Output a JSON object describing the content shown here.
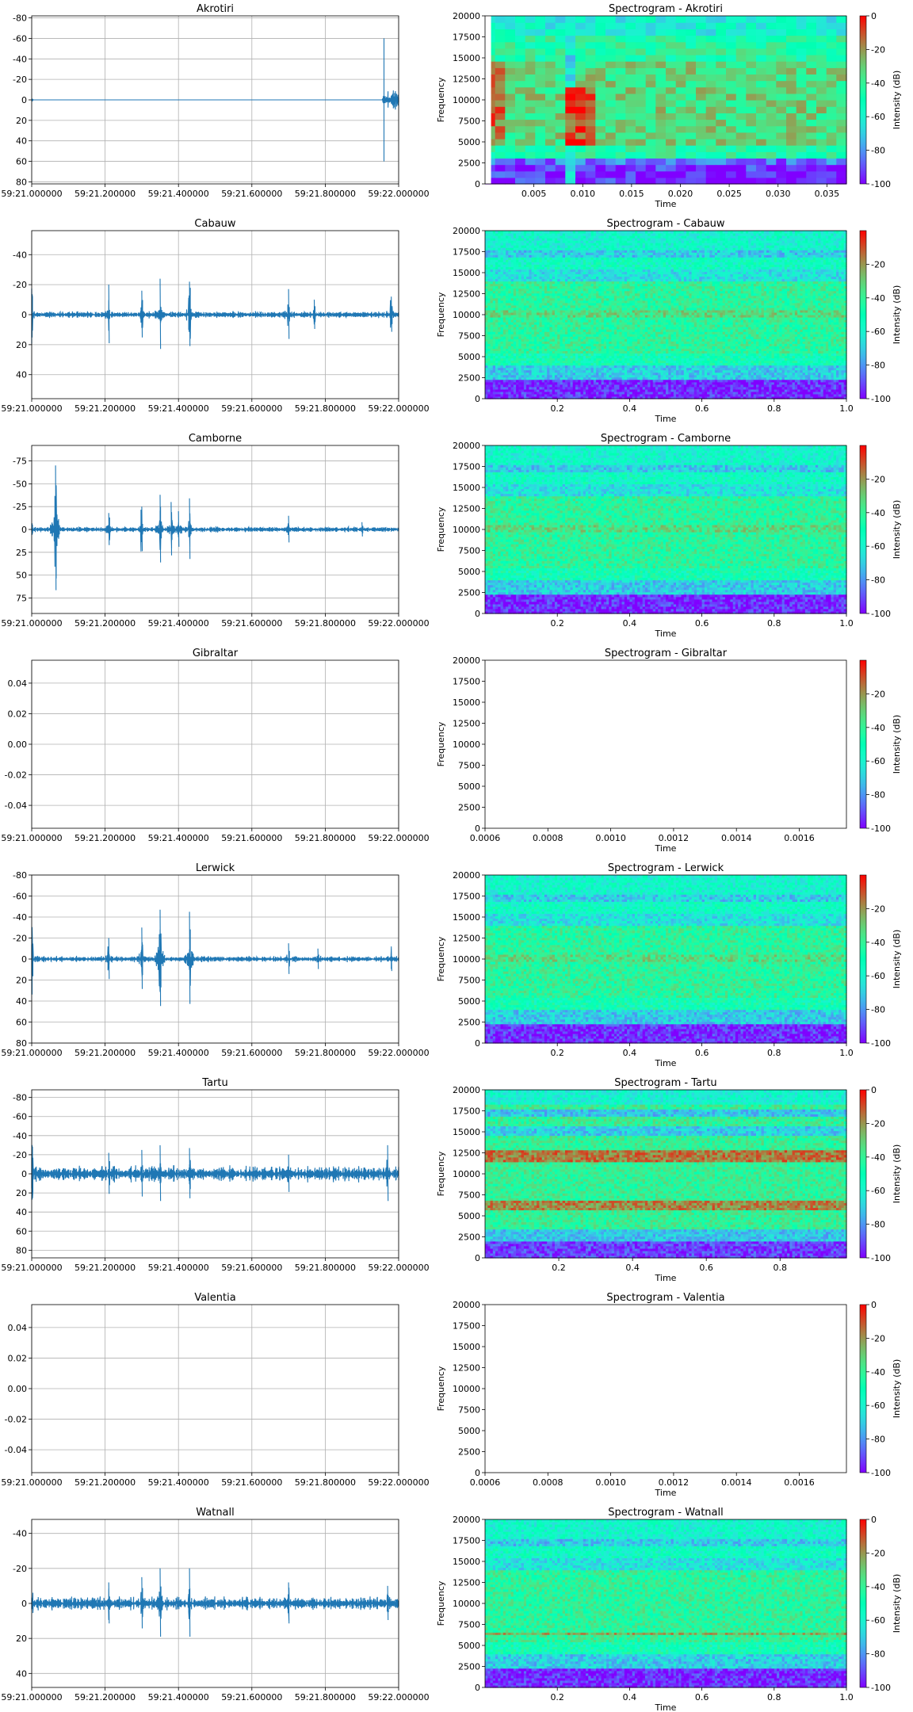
{
  "figure": {
    "waveform_color": "#1f77b4",
    "grid_color": "#b0b0b0",
    "colormap": "rainbow",
    "x_tick_labels": [
      "59:21.000000",
      "59:21.200000",
      "59:21.400000",
      "59:21.600000",
      "59:21.800000",
      "59:22.000000"
    ],
    "freq_ticks": [
      0,
      2500,
      5000,
      7500,
      10000,
      12500,
      15000,
      17500,
      20000
    ],
    "colorbar_label": "Intensity (dB)",
    "spec_xlabel": "Time",
    "spec_ylabel": "Frequency"
  },
  "chart_data": [
    {
      "type": "line",
      "panel": "waveform",
      "title": "Akrotiri",
      "grid": true,
      "y_inverted": true,
      "ylim": [
        -82,
        82
      ],
      "yticks": [
        -80,
        -60,
        -40,
        -20,
        0,
        20,
        40,
        60,
        80
      ],
      "xlim": [
        0,
        1
      ],
      "x_tick_labels_ref": "figure.x_tick_labels",
      "features": {
        "start_burst": 3,
        "baseline": 0,
        "spikes": [
          {
            "t": 0.96,
            "lo": -60,
            "hi": 60
          }
        ],
        "end_burst": 10,
        "end_start": 0.955,
        "noise": 0,
        "events": []
      }
    },
    {
      "type": "heatmap",
      "panel": "spectrogram",
      "title": "Spectrogram - Akrotiri",
      "xlabel": "Time",
      "ylabel": "Frequency",
      "ylim": [
        0,
        20000
      ],
      "xlim": [
        0,
        0.037
      ],
      "xticks": [
        0.005,
        0.01,
        0.015,
        0.02,
        0.025,
        0.03,
        0.035
      ],
      "cbar_range": [
        -100,
        0
      ],
      "cbar_ticks": [
        0,
        -20,
        -40,
        -60,
        -80,
        -100
      ],
      "cbar_label": "Intensity (dB)",
      "style": "blocky"
    },
    {
      "type": "line",
      "panel": "waveform",
      "title": "Cabauw",
      "grid": true,
      "y_inverted": true,
      "ylim": [
        -56,
        56
      ],
      "yticks": [
        -40,
        -20,
        0,
        20,
        40
      ],
      "xlim": [
        0,
        1
      ],
      "x_tick_labels_ref": "figure.x_tick_labels",
      "features": {
        "start_burst": 30,
        "noise": 2.5,
        "events": [
          [
            0.21,
            20
          ],
          [
            0.3,
            16
          ],
          [
            0.35,
            24
          ],
          [
            0.43,
            22
          ],
          [
            0.7,
            17
          ],
          [
            0.77,
            10
          ],
          [
            0.98,
            12
          ]
        ]
      }
    },
    {
      "type": "heatmap",
      "panel": "spectrogram",
      "title": "Spectrogram - Cabauw",
      "xlabel": "Time",
      "ylabel": "Frequency",
      "ylim": [
        0,
        20000
      ],
      "xlim": [
        0,
        1.0
      ],
      "xticks": [
        0.2,
        0.4,
        0.6,
        0.8,
        1.0
      ],
      "cbar_range": [
        -100,
        0
      ],
      "cbar_ticks": [
        -20,
        -40,
        -60,
        -80,
        -100
      ],
      "cbar_label": "Intensity (dB)",
      "style": "fine"
    },
    {
      "type": "line",
      "panel": "waveform",
      "title": "Camborne",
      "grid": true,
      "y_inverted": true,
      "ylim": [
        -92,
        92
      ],
      "yticks": [
        -75,
        -50,
        -25,
        0,
        25,
        50,
        75
      ],
      "xlim": [
        0,
        1
      ],
      "x_tick_labels_ref": "figure.x_tick_labels",
      "features": {
        "start_burst": 10,
        "noise": 3,
        "events": [
          [
            0.065,
            70
          ],
          [
            0.21,
            18
          ],
          [
            0.3,
            25
          ],
          [
            0.35,
            38
          ],
          [
            0.38,
            30
          ],
          [
            0.4,
            20
          ],
          [
            0.43,
            34
          ],
          [
            0.7,
            15
          ],
          [
            0.9,
            8
          ]
        ]
      }
    },
    {
      "type": "heatmap",
      "panel": "spectrogram",
      "title": "Spectrogram - Camborne",
      "xlabel": "Time",
      "ylabel": "Frequency",
      "ylim": [
        0,
        20000
      ],
      "xlim": [
        0,
        1.0
      ],
      "xticks": [
        0.2,
        0.4,
        0.6,
        0.8,
        1.0
      ],
      "cbar_range": [
        -100,
        0
      ],
      "cbar_ticks": [
        -20,
        -40,
        -60,
        -80,
        -100
      ],
      "cbar_label": "Intensity (dB)",
      "style": "fine"
    },
    {
      "type": "line",
      "panel": "waveform",
      "title": "Gibraltar",
      "grid": true,
      "ylim": [
        -0.055,
        0.055
      ],
      "yticks": [
        0.04,
        0.02,
        0.0,
        -0.02,
        -0.04
      ],
      "xlim": [
        0,
        1
      ],
      "x_tick_labels_ref": "figure.x_tick_labels",
      "empty": true
    },
    {
      "type": "heatmap",
      "panel": "spectrogram",
      "title": "Spectrogram - Gibraltar",
      "xlabel": "Time",
      "ylabel": "Frequency",
      "ylim": [
        0,
        20000
      ],
      "xlim": [
        0.0006,
        0.00175
      ],
      "xticks": [
        0.0006,
        0.0008,
        0.001,
        0.0012,
        0.0014,
        0.0016
      ],
      "cbar_range": [
        -100,
        0
      ],
      "cbar_ticks": [
        -20,
        -40,
        -60,
        -80,
        -100
      ],
      "cbar_label": "Intensity (dB)",
      "style": "empty"
    },
    {
      "type": "line",
      "panel": "waveform",
      "title": "Lerwick",
      "grid": true,
      "y_inverted": true,
      "ylim": [
        -80,
        80
      ],
      "yticks": [
        -80,
        -60,
        -40,
        -20,
        0,
        20,
        40,
        60,
        80
      ],
      "xlim": [
        0,
        1
      ],
      "x_tick_labels_ref": "figure.x_tick_labels",
      "features": {
        "start_burst": 35,
        "noise": 3,
        "events": [
          [
            0.21,
            20
          ],
          [
            0.3,
            30
          ],
          [
            0.35,
            47
          ],
          [
            0.43,
            45
          ],
          [
            0.7,
            15
          ],
          [
            0.78,
            10
          ],
          [
            0.98,
            12
          ]
        ]
      }
    },
    {
      "type": "heatmap",
      "panel": "spectrogram",
      "title": "Spectrogram - Lerwick",
      "xlabel": "Time",
      "ylabel": "Frequency",
      "ylim": [
        0,
        20000
      ],
      "xlim": [
        0,
        1.0
      ],
      "xticks": [
        0.2,
        0.4,
        0.6,
        0.8,
        1.0
      ],
      "cbar_range": [
        -100,
        0
      ],
      "cbar_ticks": [
        -20,
        -40,
        -60,
        -80,
        -100
      ],
      "cbar_label": "Intensity (dB)",
      "style": "fine"
    },
    {
      "type": "line",
      "panel": "waveform",
      "title": "Tartu",
      "grid": true,
      "y_inverted": true,
      "ylim": [
        -88,
        88
      ],
      "yticks": [
        -80,
        -60,
        -40,
        -20,
        0,
        20,
        40,
        60,
        80
      ],
      "xlim": [
        0,
        1
      ],
      "x_tick_labels_ref": "figure.x_tick_labels",
      "features": {
        "start_burst": 60,
        "noise": 9,
        "events": [
          [
            0.21,
            22
          ],
          [
            0.3,
            25
          ],
          [
            0.35,
            30
          ],
          [
            0.43,
            27
          ],
          [
            0.7,
            20
          ],
          [
            0.97,
            30
          ]
        ]
      }
    },
    {
      "type": "heatmap",
      "panel": "spectrogram",
      "title": "Spectrogram - Tartu",
      "xlabel": "Time",
      "ylabel": "Frequency",
      "ylim": [
        0,
        20000
      ],
      "xlim": [
        0,
        0.98
      ],
      "xticks": [
        0.2,
        0.4,
        0.6,
        0.8
      ],
      "cbar_range": [
        -100,
        0
      ],
      "cbar_ticks": [
        0,
        -20,
        -40,
        -60,
        -80,
        -100
      ],
      "cbar_label": "Intensity (dB)",
      "style": "bands"
    },
    {
      "type": "line",
      "panel": "waveform",
      "title": "Valentia",
      "grid": true,
      "ylim": [
        -0.055,
        0.055
      ],
      "yticks": [
        0.04,
        0.02,
        0.0,
        -0.02,
        -0.04
      ],
      "xlim": [
        0,
        1
      ],
      "x_tick_labels_ref": "figure.x_tick_labels",
      "empty": true
    },
    {
      "type": "heatmap",
      "panel": "spectrogram",
      "title": "Spectrogram - Valentia",
      "xlabel": "Time",
      "ylabel": "Frequency",
      "ylim": [
        0,
        20000
      ],
      "xlim": [
        0.0006,
        0.00175
      ],
      "xticks": [
        0.0006,
        0.0008,
        0.001,
        0.0012,
        0.0014,
        0.0016
      ],
      "cbar_range": [
        -100,
        0
      ],
      "cbar_ticks": [
        0,
        -20,
        -40,
        -60,
        -80,
        -100
      ],
      "cbar_label": "Intensity (dB)",
      "style": "empty"
    },
    {
      "type": "line",
      "panel": "waveform",
      "title": "Watnall",
      "grid": true,
      "y_inverted": true,
      "ylim": [
        -48,
        48
      ],
      "yticks": [
        -40,
        -20,
        0,
        20,
        40
      ],
      "xlim": [
        0,
        1
      ],
      "x_tick_labels_ref": "figure.x_tick_labels",
      "features": {
        "start_burst": 23,
        "noise": 4,
        "events": [
          [
            0.21,
            12
          ],
          [
            0.3,
            15
          ],
          [
            0.35,
            20
          ],
          [
            0.43,
            20
          ],
          [
            0.7,
            12
          ],
          [
            0.97,
            10
          ]
        ]
      }
    },
    {
      "type": "heatmap",
      "panel": "spectrogram",
      "title": "Spectrogram - Watnall",
      "xlabel": "Time",
      "ylabel": "Frequency",
      "ylim": [
        0,
        20000
      ],
      "xlim": [
        0,
        1.0
      ],
      "xticks": [
        0.2,
        0.4,
        0.6,
        0.8,
        1.0
      ],
      "cbar_range": [
        -100,
        0
      ],
      "cbar_ticks": [
        0,
        -20,
        -40,
        -60,
        -80,
        -100
      ],
      "cbar_label": "Intensity (dB)",
      "style": "watnall"
    }
  ]
}
